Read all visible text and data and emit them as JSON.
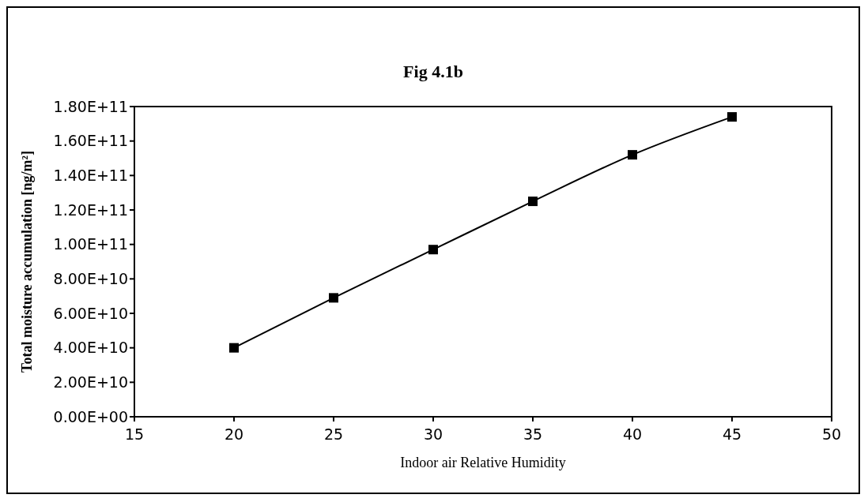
{
  "chart_data": {
    "type": "line",
    "title": "Fig 4.1b",
    "xlabel": "Indoor air Relative Humidity",
    "ylabel": "Total moisture accumulation [ng/m²]",
    "x": [
      20,
      25,
      30,
      35,
      40,
      45
    ],
    "series": [
      {
        "color": "#000000",
        "values": [
          40000000000.0,
          69000000000.0,
          97000000000.0,
          125000000000.0,
          152000000000.0,
          174000000000.0
        ]
      }
    ],
    "xlim": [
      15,
      50
    ],
    "xticks": [
      15,
      20,
      25,
      30,
      35,
      40,
      45,
      50
    ],
    "ylim": [
      0,
      180000000000.0
    ],
    "yticks": [
      {
        "value": 0,
        "label": "0.00E+00"
      },
      {
        "value": 20000000000.0,
        "label": "2.00E+10"
      },
      {
        "value": 40000000000.0,
        "label": "4.00E+10"
      },
      {
        "value": 60000000000.0,
        "label": "6.00E+10"
      },
      {
        "value": 80000000000.0,
        "label": "8.00E+10"
      },
      {
        "value": 100000000000.0,
        "label": "1.00E+11"
      },
      {
        "value": 120000000000.0,
        "label": "1.20E+11"
      },
      {
        "value": 140000000000.0,
        "label": "1.40E+11"
      },
      {
        "value": 160000000000.0,
        "label": "1.60E+11"
      },
      {
        "value": 180000000000.0,
        "label": "1.80E+11"
      }
    ],
    "grid": false,
    "legend": false,
    "marker": "square",
    "line_style": "solid"
  }
}
